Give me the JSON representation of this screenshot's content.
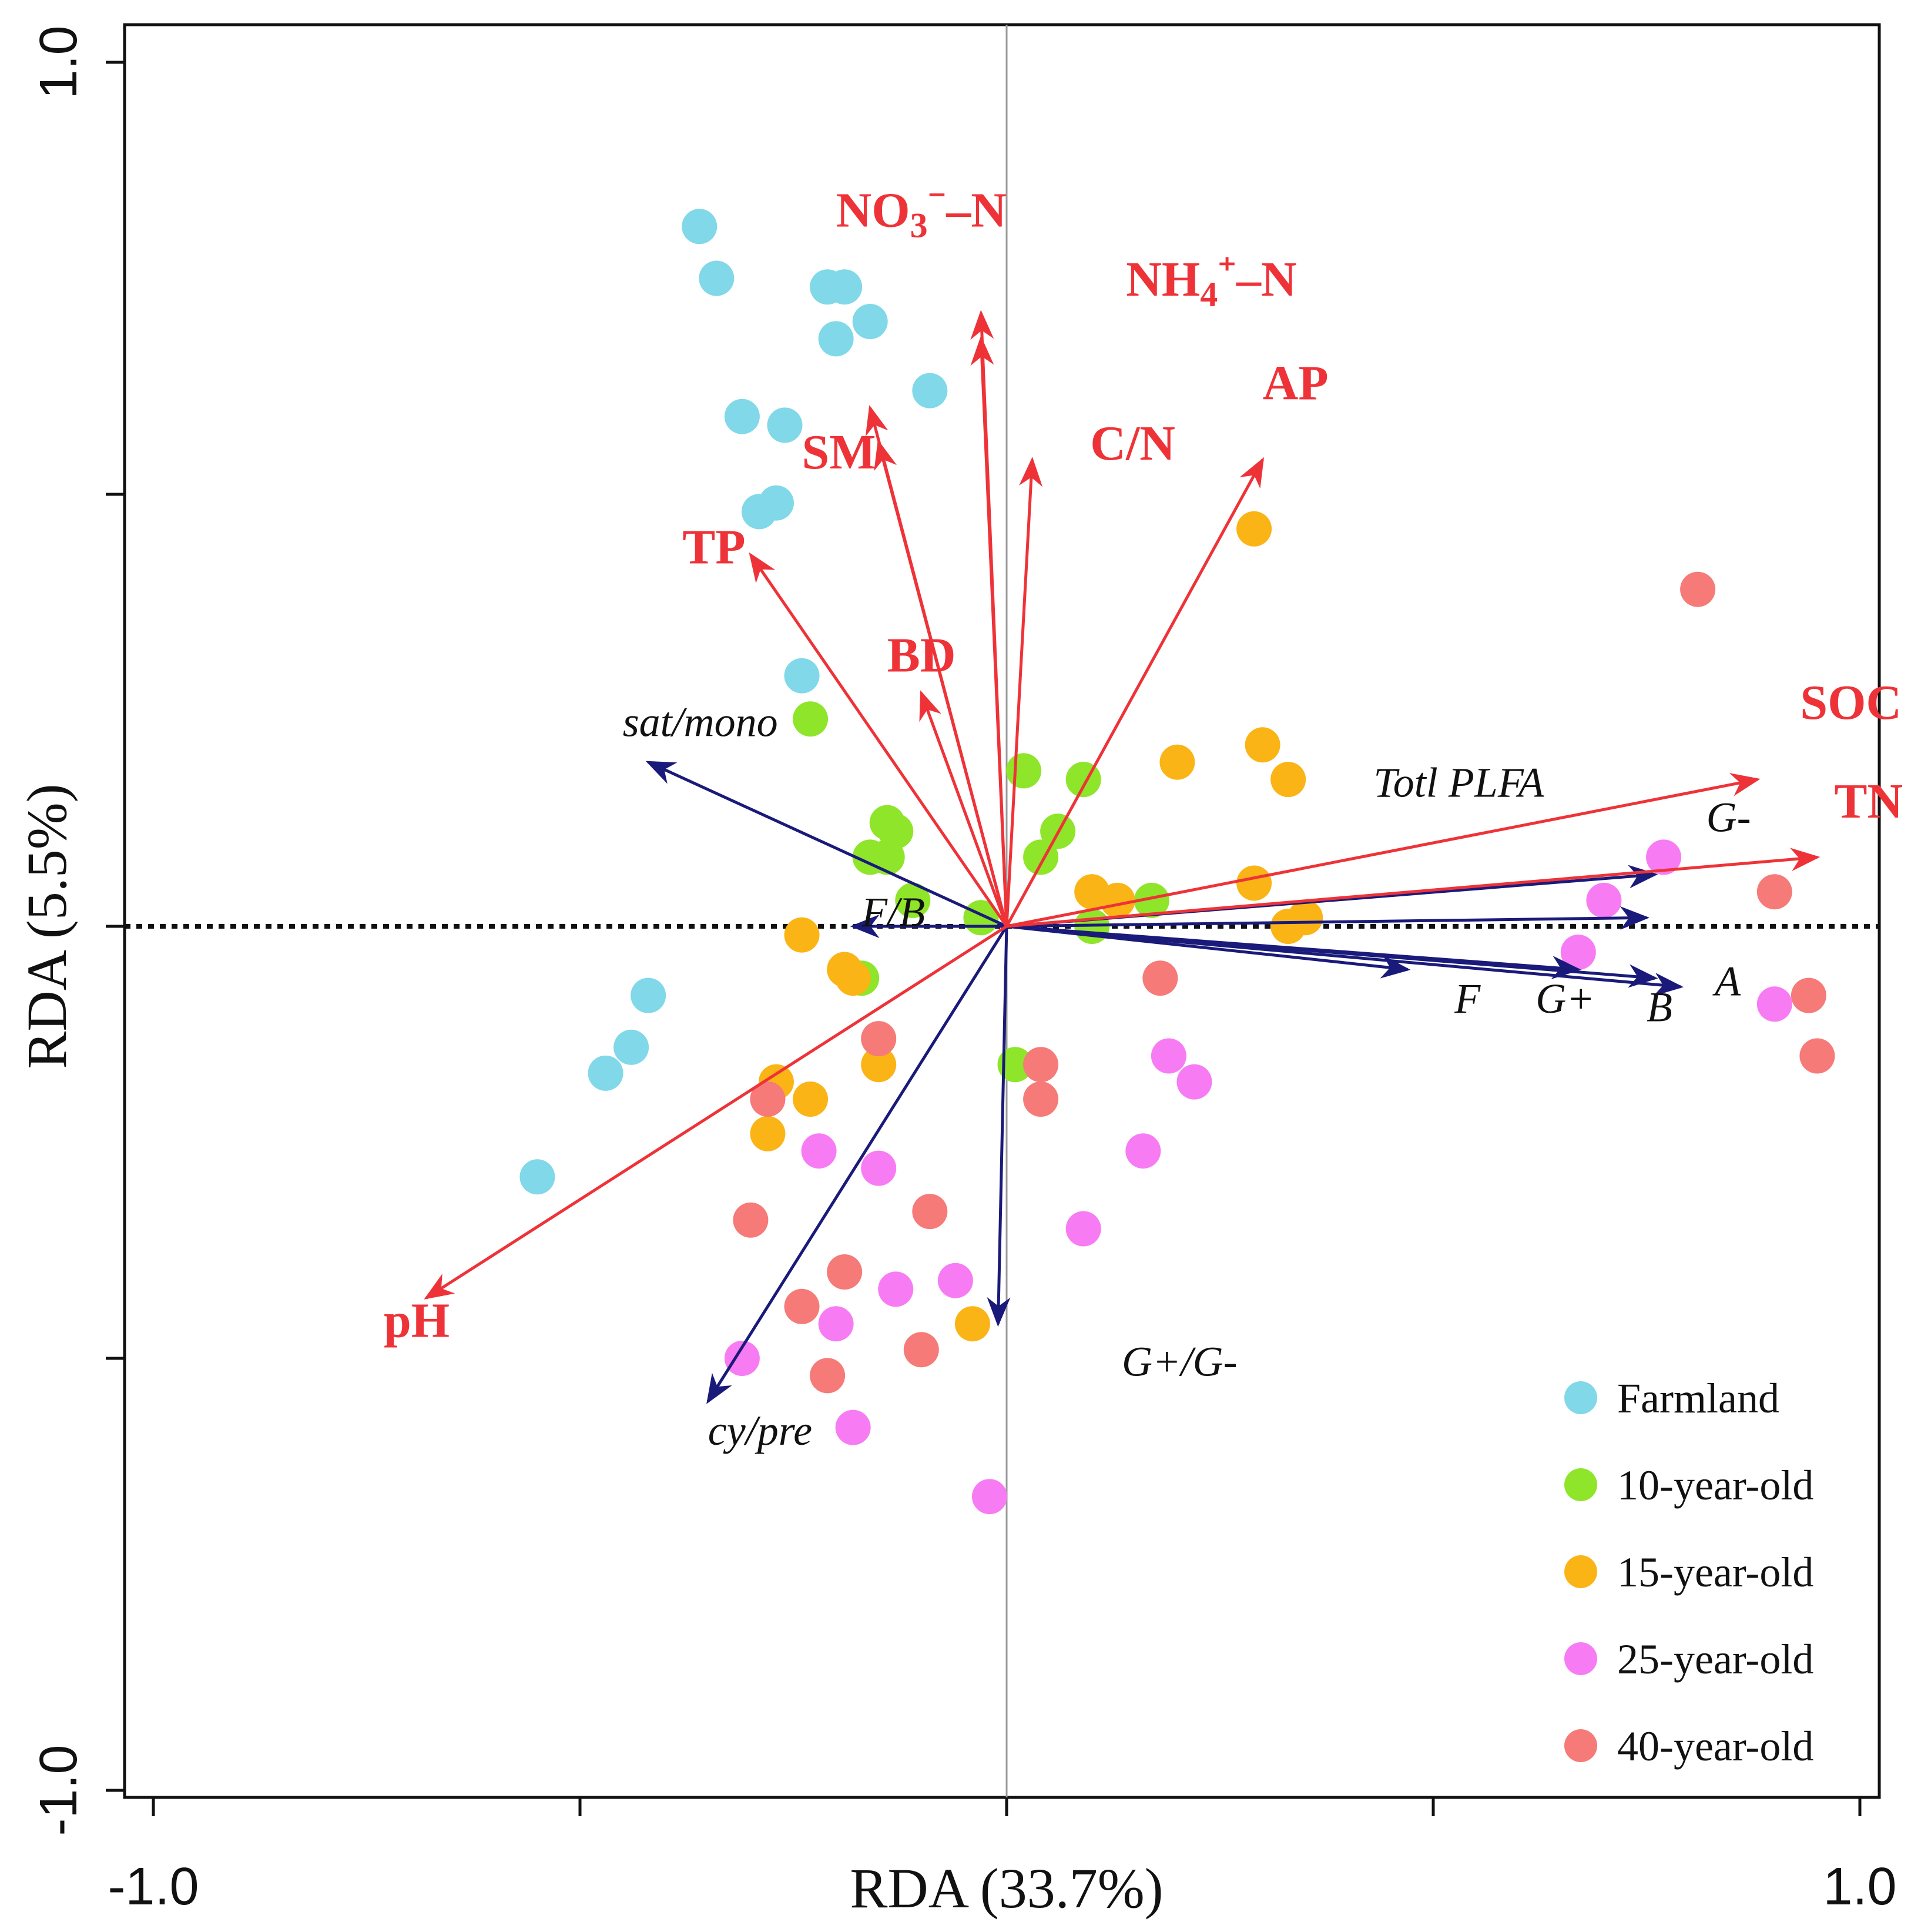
{
  "chart_data": {
    "type": "scatter",
    "title": "",
    "xlabel": "RDA (33.7%)",
    "ylabel": "RDA (5.5%)",
    "xlim": [
      -1.0,
      1.0
    ],
    "ylim": [
      -1.0,
      1.0
    ],
    "x_tick_labels": [
      "-1.0",
      "1.0"
    ],
    "y_tick_labels": [
      "1.0",
      "-1.0"
    ],
    "x_ticks": [
      -1.0,
      -0.5,
      0,
      0.5,
      1.0
    ],
    "y_ticks": [
      -1.0,
      -0.5,
      0,
      0.5,
      1.0
    ],
    "legend_position": "bottom-right",
    "colors": {
      "env_arrow": "#ee3338",
      "microbe_arrow": "#1a1a7a",
      "zero_line": "#111111",
      "center_line": "#999999"
    },
    "series": [
      {
        "name": "Farmland",
        "color": "#80d8e8",
        "points": [
          [
            -0.36,
            0.81
          ],
          [
            -0.34,
            0.75
          ],
          [
            -0.21,
            0.74
          ],
          [
            -0.19,
            0.74
          ],
          [
            -0.2,
            0.68
          ],
          [
            -0.16,
            0.7
          ],
          [
            -0.09,
            0.62
          ],
          [
            -0.31,
            0.59
          ],
          [
            -0.26,
            0.58
          ],
          [
            -0.29,
            0.48
          ],
          [
            -0.27,
            0.49
          ],
          [
            -0.24,
            0.29
          ],
          [
            -0.42,
            -0.08
          ],
          [
            -0.44,
            -0.14
          ],
          [
            -0.47,
            -0.17
          ],
          [
            -0.55,
            -0.29
          ]
        ]
      },
      {
        "name": "10-year-old",
        "color": "#8ee52a",
        "points": [
          [
            -0.23,
            0.24
          ],
          [
            0.02,
            0.18
          ],
          [
            0.09,
            0.17
          ],
          [
            0.06,
            0.11
          ],
          [
            0.04,
            0.08
          ],
          [
            -0.14,
            0.12
          ],
          [
            -0.13,
            0.11
          ],
          [
            -0.16,
            0.08
          ],
          [
            -0.14,
            0.08
          ],
          [
            -0.11,
            0.03
          ],
          [
            -0.03,
            0.01
          ],
          [
            0.1,
            0.0
          ],
          [
            0.17,
            0.03
          ],
          [
            -0.17,
            -0.06
          ],
          [
            0.01,
            -0.16
          ]
        ]
      },
      {
        "name": "15-year-old",
        "color": "#fbb416",
        "points": [
          [
            0.29,
            0.46
          ],
          [
            0.3,
            0.21
          ],
          [
            0.2,
            0.19
          ],
          [
            0.33,
            0.17
          ],
          [
            0.29,
            0.05
          ],
          [
            0.1,
            0.04
          ],
          [
            0.13,
            0.03
          ],
          [
            0.35,
            0.01
          ],
          [
            0.33,
            0.0
          ],
          [
            -0.24,
            -0.01
          ],
          [
            -0.19,
            -0.05
          ],
          [
            -0.18,
            -0.06
          ],
          [
            -0.15,
            -0.16
          ],
          [
            -0.27,
            -0.18
          ],
          [
            -0.23,
            -0.2
          ],
          [
            -0.28,
            -0.24
          ],
          [
            -0.04,
            -0.46
          ]
        ]
      },
      {
        "name": "25-year-old",
        "color": "#f77cf4",
        "points": [
          [
            0.77,
            0.08
          ],
          [
            0.7,
            0.03
          ],
          [
            0.67,
            -0.03
          ],
          [
            0.9,
            -0.09
          ],
          [
            0.19,
            -0.15
          ],
          [
            0.22,
            -0.18
          ],
          [
            0.16,
            -0.26
          ],
          [
            0.09,
            -0.35
          ],
          [
            -0.22,
            -0.26
          ],
          [
            -0.15,
            -0.28
          ],
          [
            -0.06,
            -0.41
          ],
          [
            -0.13,
            -0.42
          ],
          [
            -0.2,
            -0.46
          ],
          [
            -0.31,
            -0.5
          ],
          [
            -0.18,
            -0.58
          ],
          [
            -0.02,
            -0.66
          ]
        ]
      },
      {
        "name": "40-year-old",
        "color": "#f57a78",
        "points": [
          [
            0.81,
            0.39
          ],
          [
            0.9,
            0.04
          ],
          [
            0.94,
            -0.08
          ],
          [
            0.95,
            -0.15
          ],
          [
            0.18,
            -0.06
          ],
          [
            0.04,
            -0.16
          ],
          [
            0.04,
            -0.2
          ],
          [
            -0.15,
            -0.13
          ],
          [
            -0.28,
            -0.2
          ],
          [
            -0.3,
            -0.34
          ],
          [
            -0.09,
            -0.33
          ],
          [
            -0.19,
            -0.4
          ],
          [
            -0.24,
            -0.44
          ],
          [
            -0.21,
            -0.52
          ],
          [
            -0.1,
            -0.49
          ]
        ]
      }
    ],
    "env_vectors": [
      {
        "label": "NO3⁻–N",
        "x": -0.03,
        "y": 0.68,
        "label_x": -0.2,
        "label_y": 0.81
      },
      {
        "label": "NH4⁺–N",
        "x": -0.03,
        "y": 0.71,
        "label_x": 0.14,
        "label_y": 0.73
      },
      {
        "label": "AP",
        "x": 0.3,
        "y": 0.54,
        "label_x": 0.3,
        "label_y": 0.61
      },
      {
        "label": "C/N",
        "x": 0.03,
        "y": 0.54,
        "label_x": 0.098,
        "label_y": 0.54
      },
      {
        "label": "SM",
        "x": -0.16,
        "y": 0.6,
        "label_x": -0.24,
        "label_y": 0.53
      },
      {
        "label": "SM",
        "x": -0.15,
        "y": 0.56
      },
      {
        "label": "TP",
        "x": -0.3,
        "y": 0.43,
        "label_x": -0.38,
        "label_y": 0.42
      },
      {
        "label": "BD",
        "x": -0.1,
        "y": 0.27,
        "label_x": -0.14,
        "label_y": 0.295
      },
      {
        "label": "pH",
        "x": -0.68,
        "y": -0.43,
        "label_x": -0.73,
        "label_y": -0.475
      },
      {
        "label": "SOC",
        "x": 0.88,
        "y": 0.17,
        "label_x": 0.93,
        "label_y": 0.24
      },
      {
        "label": "TN",
        "x": 0.95,
        "y": 0.08,
        "label_x": 0.97,
        "label_y": 0.126
      }
    ],
    "microbe_vectors": [
      {
        "label": "sat/mono",
        "x": -0.42,
        "y": 0.19,
        "label_x": -0.45,
        "label_y": 0.22
      },
      {
        "label": "Totl PLFA",
        "x": 0.75,
        "y": 0.01,
        "label_x": 0.43,
        "label_y": 0.15
      },
      {
        "label": "G-",
        "x": 0.76,
        "y": 0.06,
        "label_x": 0.82,
        "label_y": 0.11
      },
      {
        "label": "F/B",
        "x": -0.18,
        "y": 0.0,
        "label_x": -0.17,
        "label_y": 0.0
      },
      {
        "label": "F",
        "x": 0.47,
        "y": -0.05,
        "label_x": 0.525,
        "label_y": -0.1
      },
      {
        "label": "G+",
        "x": 0.67,
        "y": -0.05,
        "label_x": 0.62,
        "label_y": -0.1
      },
      {
        "label": "B",
        "x": 0.76,
        "y": -0.06,
        "label_x": 0.75,
        "label_y": -0.11
      },
      {
        "label": "A",
        "x": 0.79,
        "y": -0.07,
        "label_x": 0.83,
        "label_y": -0.08
      },
      {
        "label": "G+/G-",
        "x": -0.01,
        "y": -0.46,
        "label_x": 0.135,
        "label_y": -0.52
      },
      {
        "label": "cy/pre",
        "x": -0.35,
        "y": -0.55,
        "label_x": -0.35,
        "label_y": -0.6
      }
    ]
  }
}
